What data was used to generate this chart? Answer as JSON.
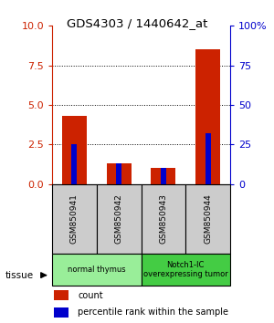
{
  "title": "GDS4303 / 1440642_at",
  "samples": [
    "GSM850941",
    "GSM850942",
    "GSM850943",
    "GSM850944"
  ],
  "count_values": [
    4.3,
    1.3,
    1.0,
    8.5
  ],
  "percentile_values": [
    2.5,
    1.3,
    1.0,
    3.2
  ],
  "groups": [
    {
      "label": "normal thymus",
      "color": "#99ee99",
      "samples": [
        0,
        1
      ]
    },
    {
      "label": "Notch1-IC\noverexpressing tumor",
      "color": "#44cc44",
      "samples": [
        2,
        3
      ]
    }
  ],
  "ylim_left": [
    0,
    10
  ],
  "ylim_right": [
    0,
    100
  ],
  "yticks_left": [
    0,
    2.5,
    5.0,
    7.5,
    10
  ],
  "yticks_right": [
    0,
    25,
    50,
    75,
    100
  ],
  "ytick_labels_right": [
    "0",
    "25",
    "50",
    "75",
    "100%"
  ],
  "red_color": "#cc2200",
  "blue_color": "#0000cc",
  "label_color_left": "#cc2200",
  "label_color_right": "#0000cc",
  "legend_items": [
    {
      "label": "count",
      "color": "#cc2200"
    },
    {
      "label": "percentile rank within the sample",
      "color": "#0000cc"
    }
  ],
  "grid_yticks": [
    2.5,
    5.0,
    7.5
  ],
  "sample_box_color": "#cccccc",
  "tissue_label": "tissue"
}
